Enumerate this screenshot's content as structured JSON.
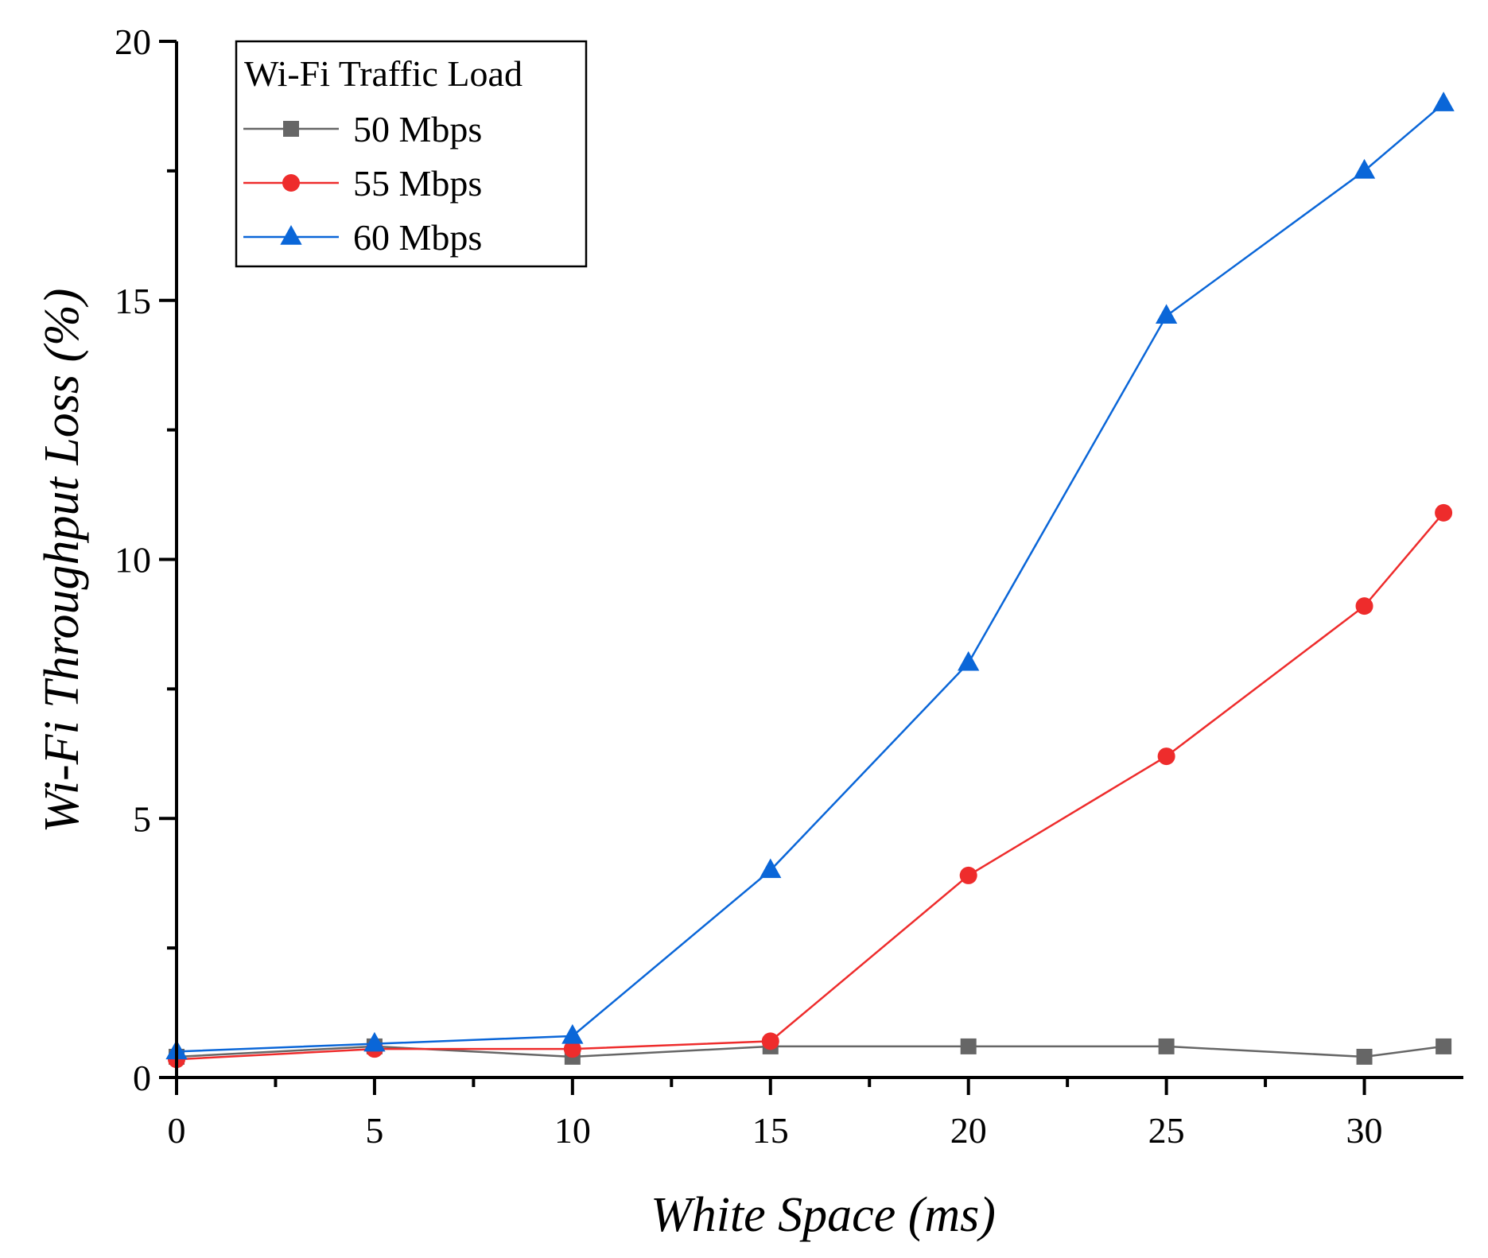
{
  "chart_data": {
    "type": "line",
    "title": "",
    "xlabel": "White Space (ms)",
    "ylabel": "Wi-Fi Throughput Loss (%)",
    "xlim": [
      0,
      32.5
    ],
    "ylim": [
      0,
      20
    ],
    "x_ticks": [
      0,
      5,
      10,
      15,
      20,
      25,
      30
    ],
    "y_ticks": [
      0,
      5,
      10,
      15,
      20
    ],
    "x_minor_ticks": [
      2.5,
      7.5,
      12.5,
      17.5,
      22.5,
      27.5
    ],
    "y_minor_ticks": [
      2.5,
      7.5,
      12.5,
      17.5
    ],
    "grid": false,
    "legend": {
      "title": "Wi-Fi Traffic Load",
      "position": "top-left"
    },
    "x": [
      0,
      5,
      10,
      15,
      20,
      25,
      30,
      32
    ],
    "series": [
      {
        "name": "50 Mbps",
        "color": "#666666",
        "marker": "square",
        "values": [
          0.4,
          0.6,
          0.4,
          0.6,
          0.6,
          0.6,
          0.4,
          0.6
        ]
      },
      {
        "name": "55 Mbps",
        "color": "#ee2c2c",
        "marker": "circle",
        "values": [
          0.35,
          0.55,
          0.55,
          0.7,
          3.9,
          6.2,
          9.1,
          10.9
        ]
      },
      {
        "name": "60 Mbps",
        "color": "#0a66d8",
        "marker": "triangle",
        "values": [
          0.5,
          0.65,
          0.8,
          4.0,
          8.0,
          14.7,
          17.5,
          18.8
        ]
      }
    ]
  }
}
